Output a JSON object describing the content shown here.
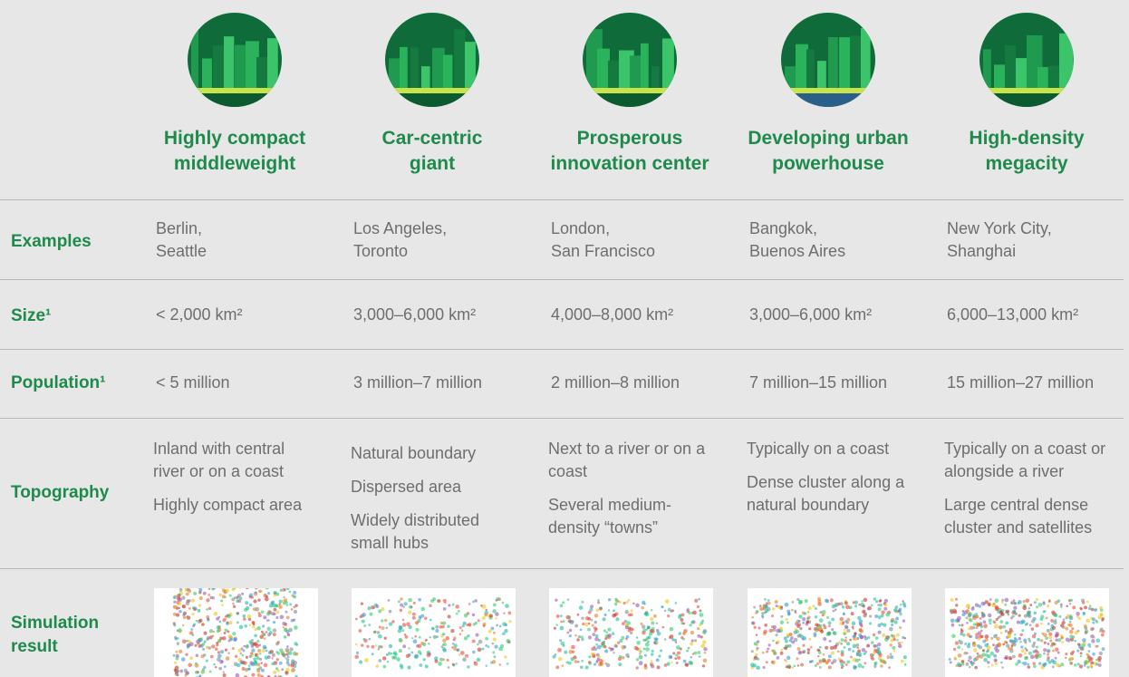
{
  "row_labels": [
    "Examples",
    "Size¹",
    "Population¹",
    "Topography",
    "Simulation result"
  ],
  "columns": [
    {
      "title": [
        "Highly compact",
        "middleweight"
      ],
      "examples": [
        "Berlin,",
        "Seattle"
      ],
      "size": "< 2,000 km²",
      "population": "< 5 million",
      "topography": [
        "Inland with central river or on a coast",
        "Highly compact area"
      ]
    },
    {
      "title": [
        "Car-centric",
        "giant"
      ],
      "examples": [
        "Los Angeles,",
        "Toronto"
      ],
      "size": "3,000–6,000 km²",
      "population": "3 million–7 million",
      "topography": [
        "Natural boundary",
        "Dispersed area",
        "Widely distributed small hubs"
      ]
    },
    {
      "title": [
        "Prosperous",
        "innovation center"
      ],
      "examples": [
        "London,",
        "San Francisco"
      ],
      "size": "4,000–8,000 km²",
      "population": "2 million–8 million",
      "topography": [
        "Next to a river or on a coast",
        "Several  medium-density “towns”"
      ]
    },
    {
      "title": [
        "Developing urban",
        "powerhouse"
      ],
      "examples": [
        "Bangkok,",
        "Buenos Aires"
      ],
      "size": "3,000–6,000 km²",
      "population": "7 million–15 million",
      "topography": [
        "Typically on a coast",
        "Dense cluster along a natural boundary"
      ]
    },
    {
      "title": [
        "High-density",
        "megacity"
      ],
      "examples": [
        "New York City,",
        "Shanghai"
      ],
      "size": "6,000–13,000 km²",
      "population": "15 million–27 million",
      "topography": [
        "Typically on a coast or alongside a river",
        "Large central dense cluster and satellites"
      ]
    }
  ]
}
